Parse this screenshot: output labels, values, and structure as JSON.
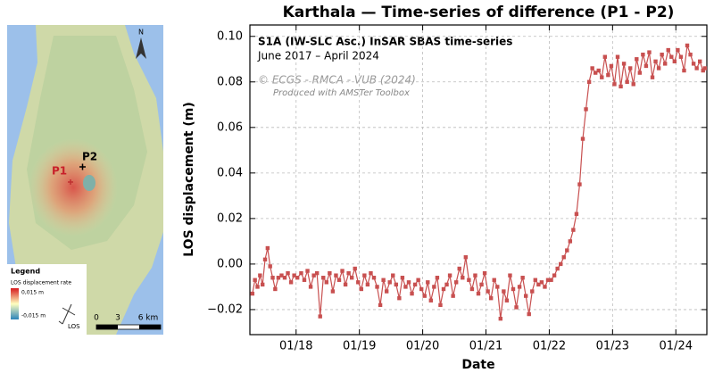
{
  "map": {
    "north": "N",
    "points": [
      "P1",
      "P2"
    ],
    "legend": {
      "title": "Legend",
      "subtitle": "LOS displacement rate",
      "max": "0,015 m",
      "min": "-0,015 m"
    },
    "los": "LOS",
    "scale": [
      "0",
      "3",
      "6 km"
    ]
  },
  "chart_data": {
    "type": "line",
    "title": "Karthala — Time-series of difference (P1 - P2)",
    "annotations": [
      "S1A (IW-SLC Asc.) InSAR SBAS time-series",
      "June 2017 – April 2024",
      "© ECGS - RMCA - VUB (2024)",
      "Produced with AMSTer Toolbox"
    ],
    "xlabel": "Date",
    "ylabel": "LOS displacement (m)",
    "color": "#c85050",
    "grid": true,
    "xlim": [
      2017.27,
      2024.49
    ],
    "ylim": [
      -0.031,
      0.105
    ],
    "xticks": [
      {
        "value": 2018,
        "label": "01/18"
      },
      {
        "value": 2019,
        "label": "01/19"
      },
      {
        "value": 2020,
        "label": "01/20"
      },
      {
        "value": 2021,
        "label": "01/21"
      },
      {
        "value": 2022,
        "label": "01/22"
      },
      {
        "value": 2023,
        "label": "01/23"
      },
      {
        "value": 2024,
        "label": "01/24"
      }
    ],
    "yticks": [
      {
        "value": -0.02,
        "label": "−0.02"
      },
      {
        "value": 0,
        "label": "0.00"
      },
      {
        "value": 0.02,
        "label": "0.02"
      },
      {
        "value": 0.04,
        "label": "0.04"
      },
      {
        "value": 0.06,
        "label": "0.06"
      },
      {
        "value": 0.08,
        "label": "0.08"
      },
      {
        "value": 0.1,
        "label": "0.10"
      }
    ],
    "x": [
      2017.31,
      2017.35,
      2017.39,
      2017.43,
      2017.47,
      2017.51,
      2017.55,
      2017.59,
      2017.63,
      2017.67,
      2017.72,
      2017.77,
      2017.82,
      2017.87,
      2017.92,
      2017.97,
      2018.02,
      2018.08,
      2018.13,
      2018.18,
      2018.23,
      2018.28,
      2018.33,
      2018.38,
      2018.43,
      2018.48,
      2018.53,
      2018.58,
      2018.63,
      2018.68,
      2018.73,
      2018.78,
      2018.83,
      2018.88,
      2018.93,
      2018.98,
      2019.03,
      2019.08,
      2019.13,
      2019.18,
      2019.23,
      2019.28,
      2019.33,
      2019.38,
      2019.43,
      2019.48,
      2019.53,
      2019.58,
      2019.63,
      2019.68,
      2019.73,
      2019.78,
      2019.83,
      2019.88,
      2019.93,
      2019.98,
      2020.03,
      2020.08,
      2020.13,
      2020.18,
      2020.23,
      2020.28,
      2020.33,
      2020.38,
      2020.43,
      2020.48,
      2020.53,
      2020.58,
      2020.63,
      2020.68,
      2020.73,
      2020.78,
      2020.83,
      2020.88,
      2020.93,
      2020.98,
      2021.03,
      2021.08,
      2021.13,
      2021.18,
      2021.23,
      2021.28,
      2021.33,
      2021.38,
      2021.43,
      2021.48,
      2021.53,
      2021.58,
      2021.63,
      2021.68,
      2021.73,
      2021.78,
      2021.83,
      2021.88,
      2021.93,
      2021.98,
      2022.03,
      2022.08,
      2022.13,
      2022.18,
      2022.23,
      2022.28,
      2022.33,
      2022.38,
      2022.43,
      2022.48,
      2022.53,
      2022.58,
      2022.63,
      2022.68,
      2022.73,
      2022.78,
      2022.83,
      2022.88,
      2022.93,
      2022.98,
      2023.03,
      2023.08,
      2023.13,
      2023.18,
      2023.23,
      2023.28,
      2023.33,
      2023.38,
      2023.43,
      2023.48,
      2023.53,
      2023.58,
      2023.63,
      2023.68,
      2023.73,
      2023.78,
      2023.83,
      2023.88,
      2023.93,
      2023.98,
      2024.03,
      2024.08,
      2024.13,
      2024.18,
      2024.23,
      2024.28,
      2024.33,
      2024.38,
      2024.43,
      2024.46
    ],
    "values": [
      -0.013,
      -0.007,
      -0.01,
      -0.005,
      -0.009,
      0.002,
      0.007,
      -0.001,
      -0.006,
      -0.011,
      -0.006,
      -0.005,
      -0.006,
      -0.004,
      -0.008,
      -0.005,
      -0.006,
      -0.004,
      -0.007,
      -0.003,
      -0.01,
      -0.005,
      -0.004,
      -0.023,
      -0.006,
      -0.008,
      -0.004,
      -0.012,
      -0.005,
      -0.007,
      -0.003,
      -0.009,
      -0.004,
      -0.006,
      -0.002,
      -0.008,
      -0.011,
      -0.005,
      -0.009,
      -0.004,
      -0.006,
      -0.01,
      -0.018,
      -0.007,
      -0.012,
      -0.008,
      -0.005,
      -0.009,
      -0.015,
      -0.006,
      -0.01,
      -0.008,
      -0.013,
      -0.009,
      -0.007,
      -0.011,
      -0.014,
      -0.008,
      -0.016,
      -0.01,
      -0.006,
      -0.018,
      -0.011,
      -0.009,
      -0.005,
      -0.014,
      -0.008,
      -0.002,
      -0.006,
      0.003,
      -0.007,
      -0.011,
      -0.005,
      -0.013,
      -0.009,
      -0.004,
      -0.012,
      -0.015,
      -0.007,
      -0.01,
      -0.024,
      -0.012,
      -0.016,
      -0.005,
      -0.011,
      -0.019,
      -0.01,
      -0.006,
      -0.014,
      -0.022,
      -0.012,
      -0.007,
      -0.009,
      -0.008,
      -0.01,
      -0.007,
      -0.007,
      -0.005,
      -0.002,
      0.0,
      0.003,
      0.006,
      0.01,
      0.015,
      0.022,
      0.035,
      0.055,
      0.068,
      0.08,
      0.086,
      0.084,
      0.085,
      0.082,
      0.091,
      0.083,
      0.087,
      0.079,
      0.091,
      0.078,
      0.088,
      0.08,
      0.086,
      0.079,
      0.09,
      0.084,
      0.092,
      0.087,
      0.093,
      0.082,
      0.089,
      0.086,
      0.092,
      0.088,
      0.094,
      0.091,
      0.089,
      0.094,
      0.091,
      0.085,
      0.096,
      0.092,
      0.088,
      0.086,
      0.089,
      0.085,
      0.086
    ]
  }
}
